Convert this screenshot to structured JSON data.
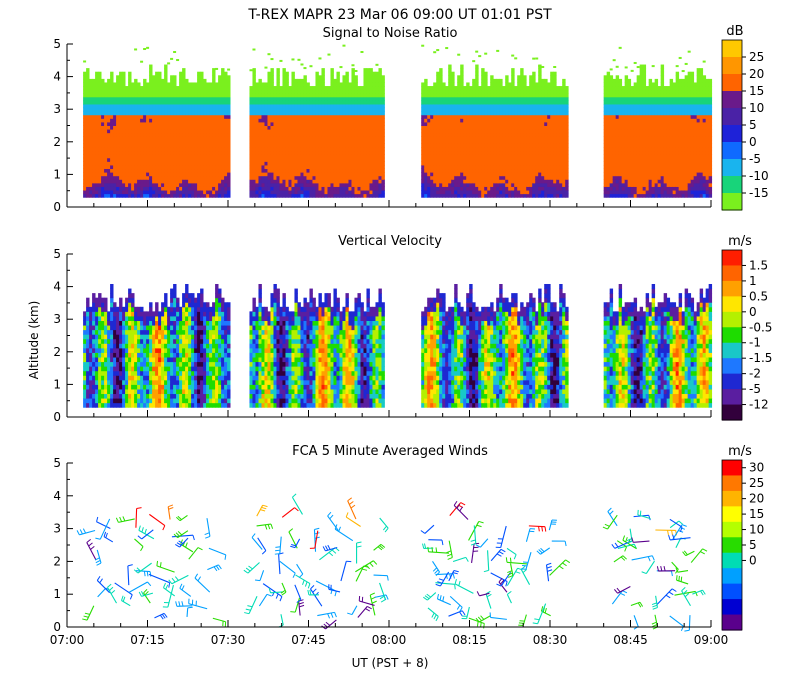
{
  "header": {
    "title": "T-REX   MAPR 23 Mar 06   09:00 UT   01:01   PST"
  },
  "chart_data": [
    {
      "type": "heatmap",
      "title": "Signal to Noise Ratio",
      "ylabel": "",
      "yticks": [
        "0",
        "1",
        "2",
        "3",
        "4",
        "5"
      ],
      "ylim": [
        0,
        5
      ],
      "colorbar": {
        "unit": "dB",
        "labels": [
          "25",
          "20",
          "15",
          "10",
          "5",
          "0",
          "-5",
          "-10",
          "-15"
        ],
        "colors": [
          "#ffc800",
          "#ff9600",
          "#ff6400",
          "#6a1a8a",
          "#4a22a6",
          "#1e22d8",
          "#0f6aff",
          "#19b4ee",
          "#18d47a",
          "#7af01e"
        ]
      },
      "segments": [
        {
          "start": "07:03",
          "end": "07:30"
        },
        {
          "start": "07:34",
          "end": "07:59"
        },
        {
          "start": "08:06",
          "end": "08:33"
        },
        {
          "start": "08:40",
          "end": "09:00"
        }
      ]
    },
    {
      "type": "heatmap",
      "title": "Vertical Velocity",
      "ylabel": "Altitude (km)",
      "yticks": [
        "0",
        "1",
        "2",
        "3",
        "4",
        "5"
      ],
      "ylim": [
        0,
        5
      ],
      "colorbar": {
        "unit": "m/s",
        "labels": [
          "1.5",
          "1",
          "0.5",
          "0",
          "-0.5",
          "-1",
          "-1.5",
          "-2",
          "-5",
          "-12"
        ],
        "colors": [
          "#ff1e00",
          "#ff6400",
          "#ffa000",
          "#ffe600",
          "#b4f000",
          "#1edc00",
          "#19c8c8",
          "#1e78ff",
          "#1e28d2",
          "#5a1ea0",
          "#32003c"
        ]
      }
    },
    {
      "type": "scatter",
      "title": "FCA 5 Minute Averaged Winds",
      "xlabel": "UT  (PST + 8)",
      "xticks": [
        "07:00",
        "07:15",
        "07:30",
        "07:45",
        "08:00",
        "08:15",
        "08:30",
        "08:45",
        "09:00"
      ],
      "xlim": [
        "07:00",
        "09:00"
      ],
      "yticks": [
        "0",
        "1",
        "2",
        "3",
        "4",
        "5"
      ],
      "ylim": [
        0,
        5
      ],
      "colorbar": {
        "unit": "m/s",
        "labels": [
          "30",
          "25",
          "20",
          "15",
          "10",
          "5",
          "0"
        ],
        "colors": [
          "#ff0000",
          "#ff7800",
          "#ffb400",
          "#ffff00",
          "#b4ff00",
          "#28dc00",
          "#00dcb4",
          "#00a0ff",
          "#0050ff",
          "#0000d2",
          "#5a008c"
        ]
      }
    }
  ]
}
